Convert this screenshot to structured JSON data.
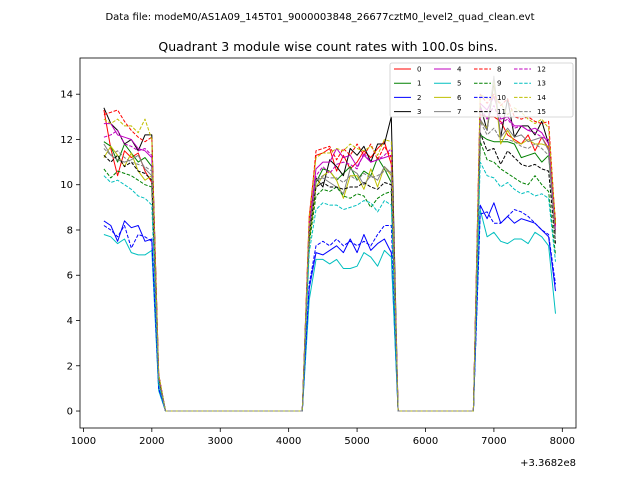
{
  "chart_data": {
    "type": "line",
    "suptitle": "Data file: modeM0/AS1A09_145T01_9000003848_26677cztM0_level2_quad_clean.evt",
    "title": "Quadrant 3 module wise count rates with 100.0s bins.",
    "xlabel": "",
    "ylabel": "",
    "x_offset_label": "+3.3682e8",
    "xlim": [
      950,
      8200
    ],
    "ylim": [
      -0.75,
      15.6
    ],
    "x_ticks": [
      1000,
      2000,
      3000,
      4000,
      5000,
      6000,
      7000,
      8000
    ],
    "y_ticks": [
      0,
      2,
      4,
      6,
      8,
      10,
      12,
      14
    ],
    "legend_position": "top-right",
    "x": [
      1300,
      1400,
      1500,
      1600,
      1700,
      1800,
      1900,
      2000,
      2100,
      2200,
      2300,
      2400,
      2500,
      2600,
      2700,
      2800,
      2900,
      3000,
      3100,
      3200,
      3300,
      3400,
      3500,
      3600,
      3700,
      3800,
      3900,
      4000,
      4100,
      4200,
      4300,
      4400,
      4500,
      4600,
      4700,
      4800,
      4900,
      5000,
      5100,
      5200,
      5300,
      5400,
      5500,
      5600,
      5700,
      5800,
      5900,
      6000,
      6100,
      6200,
      6300,
      6400,
      6500,
      6600,
      6700,
      6800,
      6900,
      7000,
      7100,
      7200,
      7300,
      7400,
      7500,
      7600,
      7700,
      7800,
      7900
    ],
    "series": [
      {
        "name": "0",
        "color": "#ff0000",
        "dash": "solid",
        "values": [
          13.3,
          11.6,
          10.4,
          11.5,
          11.2,
          11.4,
          10.6,
          10.1,
          1.4,
          0,
          0,
          0,
          0,
          0,
          0,
          0,
          0,
          0,
          0,
          0,
          0,
          0,
          0,
          0,
          0,
          0,
          0,
          0,
          0,
          0,
          8.6,
          11.3,
          11.4,
          11.6,
          10.6,
          11.3,
          10.7,
          11.0,
          11.5,
          11.2,
          11.6,
          11.9,
          10.9,
          0,
          0,
          0,
          0,
          0,
          0,
          0,
          0,
          0,
          0,
          0,
          0,
          13.1,
          13.0,
          13.0,
          12.8,
          12.2,
          12.0,
          11.8,
          12.2,
          11.5,
          12.1,
          11.6,
          8.4
        ]
      },
      {
        "name": "1",
        "color": "#008000",
        "dash": "solid",
        "values": [
          11.9,
          11.7,
          11.0,
          11.8,
          11.4,
          11.0,
          11.2,
          10.8,
          1.3,
          0,
          0,
          0,
          0,
          0,
          0,
          0,
          0,
          0,
          0,
          0,
          0,
          0,
          0,
          0,
          0,
          0,
          0,
          0,
          0,
          0,
          8.0,
          10.1,
          10.7,
          10.6,
          10.2,
          10.5,
          10.8,
          10.2,
          10.6,
          10.4,
          11.2,
          10.7,
          10.1,
          0,
          0,
          0,
          0,
          0,
          0,
          0,
          0,
          0,
          0,
          0,
          0,
          12.2,
          12.0,
          11.9,
          11.9,
          11.9,
          11.8,
          11.2,
          11.3,
          11.4,
          11.0,
          11.3,
          7.9
        ]
      },
      {
        "name": "2",
        "color": "#0000ff",
        "dash": "solid",
        "values": [
          8.4,
          8.2,
          7.5,
          8.4,
          8.1,
          8.2,
          7.5,
          7.6,
          1.0,
          0,
          0,
          0,
          0,
          0,
          0,
          0,
          0,
          0,
          0,
          0,
          0,
          0,
          0,
          0,
          0,
          0,
          0,
          0,
          0,
          0,
          5.4,
          7.0,
          6.9,
          7.1,
          7.3,
          7.0,
          7.6,
          7.0,
          7.8,
          7.1,
          7.4,
          7.6,
          7.0,
          0,
          0,
          0,
          0,
          0,
          0,
          0,
          0,
          0,
          0,
          0,
          0,
          9.1,
          8.5,
          9.2,
          8.3,
          8.6,
          8.3,
          8.5,
          8.4,
          8.3,
          8.0,
          7.7,
          5.3
        ]
      },
      {
        "name": "3",
        "color": "#000000",
        "dash": "solid",
        "values": [
          13.4,
          12.7,
          12.4,
          11.8,
          12.0,
          11.5,
          12.2,
          12.2,
          1.6,
          0,
          0,
          0,
          0,
          0,
          0,
          0,
          0,
          0,
          0,
          0,
          0,
          0,
          0,
          0,
          0,
          0,
          0,
          0,
          0,
          0,
          8.2,
          10.3,
          9.9,
          11.1,
          10.8,
          10.4,
          11.6,
          11.3,
          11.7,
          11.0,
          11.8,
          11.8,
          13.0,
          0,
          0,
          0,
          0,
          0,
          0,
          0,
          0,
          0,
          0,
          0,
          0,
          13.5,
          12.4,
          14.5,
          12.1,
          13.8,
          12.1,
          12.6,
          12.6,
          12.2,
          12.8,
          11.8,
          8.3
        ]
      },
      {
        "name": "4",
        "color": "#bf00bf",
        "dash": "solid",
        "values": [
          12.7,
          12.7,
          12.2,
          12.1,
          12.0,
          11.6,
          11.5,
          11.2,
          1.5,
          0,
          0,
          0,
          0,
          0,
          0,
          0,
          0,
          0,
          0,
          0,
          0,
          0,
          0,
          0,
          0,
          0,
          0,
          0,
          0,
          0,
          8.2,
          10.7,
          11.0,
          11.0,
          11.6,
          11.2,
          11.3,
          10.8,
          11.3,
          11.0,
          11.1,
          11.2,
          11.3,
          0,
          0,
          0,
          0,
          0,
          0,
          0,
          0,
          0,
          0,
          0,
          0,
          13.6,
          13.3,
          13.9,
          12.9,
          13.0,
          12.6,
          12.6,
          12.4,
          12.5,
          12.3,
          11.8,
          7.9
        ]
      },
      {
        "name": "5",
        "color": "#00bfbf",
        "dash": "solid",
        "values": [
          7.8,
          7.7,
          7.4,
          7.6,
          7.0,
          6.9,
          6.9,
          7.1,
          0.9,
          0,
          0,
          0,
          0,
          0,
          0,
          0,
          0,
          0,
          0,
          0,
          0,
          0,
          0,
          0,
          0,
          0,
          0,
          0,
          0,
          0,
          4.9,
          6.7,
          6.7,
          6.5,
          6.7,
          6.3,
          6.3,
          6.4,
          7.0,
          6.8,
          6.4,
          7.1,
          6.8,
          0,
          0,
          0,
          0,
          0,
          0,
          0,
          0,
          0,
          0,
          0,
          0,
          8.9,
          7.7,
          7.9,
          7.5,
          7.4,
          7.6,
          7.6,
          7.4,
          7.9,
          7.7,
          7.3,
          4.3
        ]
      },
      {
        "name": "6",
        "color": "#bfbf00",
        "dash": "solid",
        "values": [
          11.2,
          11.7,
          11.3,
          10.8,
          11.4,
          10.6,
          10.2,
          10.4,
          1.4,
          0,
          0,
          0,
          0,
          0,
          0,
          0,
          0,
          0,
          0,
          0,
          0,
          0,
          0,
          0,
          0,
          0,
          0,
          0,
          0,
          0,
          7.5,
          9.9,
          10.4,
          10.6,
          10.2,
          9.4,
          10.4,
          10.4,
          9.8,
          10.7,
          9.9,
          10.8,
          10.4,
          0,
          0,
          0,
          0,
          0,
          0,
          0,
          0,
          0,
          0,
          0,
          0,
          12.8,
          12.5,
          14.6,
          11.8,
          12.4,
          11.9,
          11.8,
          12.0,
          11.8,
          11.8,
          11.7,
          7.8
        ]
      },
      {
        "name": "7",
        "color": "#808080",
        "dash": "solid",
        "values": [
          11.8,
          11.3,
          11.1,
          11.0,
          11.1,
          11.3,
          10.7,
          10.4,
          1.4,
          0,
          0,
          0,
          0,
          0,
          0,
          0,
          0,
          0,
          0,
          0,
          0,
          0,
          0,
          0,
          0,
          0,
          0,
          0,
          0,
          0,
          7.8,
          10.2,
          10.3,
          10.1,
          9.9,
          9.6,
          10.7,
          10.5,
          10.0,
          10.4,
          10.2,
          10.8,
          10.5,
          0,
          0,
          0,
          0,
          0,
          0,
          0,
          0,
          0,
          0,
          0,
          0,
          12.9,
          12.4,
          14.8,
          12.1,
          12.5,
          12.1,
          12.2,
          11.9,
          12.0,
          12.1,
          11.5,
          7.8
        ]
      },
      {
        "name": "8",
        "color": "#ff0000",
        "dash": "dashed",
        "values": [
          13.1,
          13.2,
          13.3,
          12.8,
          12.4,
          12.1,
          11.9,
          12.1,
          1.6,
          0,
          0,
          0,
          0,
          0,
          0,
          0,
          0,
          0,
          0,
          0,
          0,
          0,
          0,
          0,
          0,
          0,
          0,
          0,
          0,
          0,
          8.4,
          11.5,
          11.6,
          11.7,
          11.1,
          11.6,
          11.3,
          11.8,
          11.3,
          11.8,
          11.1,
          11.7,
          11.2,
          0,
          0,
          0,
          0,
          0,
          0,
          0,
          0,
          0,
          0,
          0,
          0,
          14.0,
          13.6,
          14.0,
          13.5,
          13.8,
          13.0,
          12.9,
          13.0,
          12.8,
          12.7,
          12.8,
          8.2
        ]
      },
      {
        "name": "9",
        "color": "#008000",
        "dash": "dashed",
        "values": [
          10.7,
          10.3,
          10.6,
          10.5,
          10.4,
          10.2,
          10.0,
          9.9,
          1.3,
          0,
          0,
          0,
          0,
          0,
          0,
          0,
          0,
          0,
          0,
          0,
          0,
          0,
          0,
          0,
          0,
          0,
          0,
          0,
          0,
          0,
          7.4,
          9.5,
          9.8,
          9.7,
          9.9,
          9.5,
          9.4,
          9.6,
          9.5,
          9.0,
          9.4,
          9.6,
          9.7,
          0,
          0,
          0,
          0,
          0,
          0,
          0,
          0,
          0,
          0,
          0,
          0,
          11.9,
          11.1,
          11.0,
          10.7,
          10.5,
          10.3,
          10.1,
          10.0,
          10.4,
          10.0,
          9.7,
          6.9
        ]
      },
      {
        "name": "10",
        "color": "#0000ff",
        "dash": "dashed",
        "values": [
          8.2,
          8.0,
          7.7,
          8.2,
          7.2,
          7.8,
          7.7,
          7.5,
          1.0,
          0,
          0,
          0,
          0,
          0,
          0,
          0,
          0,
          0,
          0,
          0,
          0,
          0,
          0,
          0,
          0,
          0,
          0,
          0,
          0,
          0,
          5.6,
          7.3,
          7.5,
          7.3,
          7.6,
          7.3,
          7.5,
          7.3,
          7.5,
          7.3,
          7.8,
          8.2,
          8.2,
          0,
          0,
          0,
          0,
          0,
          0,
          0,
          0,
          0,
          0,
          0,
          0,
          8.7,
          8.8,
          8.3,
          8.3,
          8.6,
          8.9,
          8.8,
          8.6,
          8.3,
          8.0,
          7.8,
          5.6
        ]
      },
      {
        "name": "11",
        "color": "#000000",
        "dash": "dashed",
        "values": [
          11.3,
          11.0,
          11.3,
          10.8,
          11.0,
          10.6,
          10.5,
          10.2,
          1.4,
          0,
          0,
          0,
          0,
          0,
          0,
          0,
          0,
          0,
          0,
          0,
          0,
          0,
          0,
          0,
          0,
          0,
          0,
          0,
          0,
          0,
          7.8,
          9.9,
          10.1,
          9.9,
          9.9,
          9.8,
          9.9,
          9.9,
          10.1,
          9.9,
          9.8,
          10.1,
          10.0,
          0,
          0,
          0,
          0,
          0,
          0,
          0,
          0,
          0,
          0,
          0,
          0,
          12.3,
          11.5,
          11.6,
          10.9,
          11.5,
          11.2,
          10.9,
          10.8,
          10.9,
          10.7,
          10.6,
          7.4
        ]
      },
      {
        "name": "12",
        "color": "#bf00bf",
        "dash": "dashed",
        "values": [
          12.1,
          12.2,
          12.4,
          11.8,
          11.7,
          11.5,
          11.6,
          11.3,
          1.5,
          0,
          0,
          0,
          0,
          0,
          0,
          0,
          0,
          0,
          0,
          0,
          0,
          0,
          0,
          0,
          0,
          0,
          0,
          0,
          0,
          0,
          8.2,
          10.4,
          10.8,
          10.5,
          10.9,
          11.0,
          10.9,
          10.7,
          11.4,
          11.0,
          11.1,
          11.3,
          11.6,
          0,
          0,
          0,
          0,
          0,
          0,
          0,
          0,
          0,
          0,
          0,
          0,
          13.4,
          12.9,
          13.5,
          12.7,
          12.9,
          12.5,
          12.6,
          12.4,
          12.3,
          12.1,
          12.0,
          8.0
        ]
      },
      {
        "name": "13",
        "color": "#00bfbf",
        "dash": "dashed",
        "values": [
          10.4,
          10.1,
          10.2,
          10.0,
          9.8,
          9.5,
          9.4,
          9.1,
          1.2,
          0,
          0,
          0,
          0,
          0,
          0,
          0,
          0,
          0,
          0,
          0,
          0,
          0,
          0,
          0,
          0,
          0,
          0,
          0,
          0,
          0,
          7.0,
          8.9,
          9.2,
          9.1,
          9.1,
          8.9,
          9.0,
          9.1,
          9.3,
          9.2,
          8.8,
          9.3,
          9.1,
          0,
          0,
          0,
          0,
          0,
          0,
          0,
          0,
          0,
          0,
          0,
          0,
          11.0,
          10.4,
          10.3,
          9.9,
          10.1,
          9.8,
          9.6,
          9.7,
          9.5,
          9.6,
          9.4,
          6.6
        ]
      },
      {
        "name": "14",
        "color": "#bfbf00",
        "dash": "dashed",
        "values": [
          12.9,
          12.7,
          12.9,
          12.6,
          12.6,
          12.3,
          12.9,
          12.0,
          1.6,
          0,
          0,
          0,
          0,
          0,
          0,
          0,
          0,
          0,
          0,
          0,
          0,
          0,
          0,
          0,
          0,
          0,
          0,
          0,
          0,
          0,
          8.5,
          11.2,
          11.4,
          11.4,
          11.6,
          11.5,
          11.8,
          11.6,
          11.5,
          11.7,
          11.3,
          12.0,
          11.9,
          0,
          0,
          0,
          0,
          0,
          0,
          0,
          0,
          0,
          0,
          0,
          0,
          14.0,
          13.8,
          13.9,
          13.6,
          13.1,
          13.4,
          13.2,
          12.9,
          12.7,
          12.9,
          12.5,
          8.3
        ]
      },
      {
        "name": "15",
        "color": "#808080",
        "dash": "dashed",
        "values": [
          11.6,
          11.3,
          11.5,
          11.2,
          11.0,
          10.9,
          10.8,
          10.6,
          1.4,
          0,
          0,
          0,
          0,
          0,
          0,
          0,
          0,
          0,
          0,
          0,
          0,
          0,
          0,
          0,
          0,
          0,
          0,
          0,
          0,
          0,
          7.9,
          10.2,
          10.4,
          10.3,
          10.3,
          10.1,
          10.4,
          10.2,
          10.5,
          10.3,
          10.4,
          10.6,
          10.6,
          0,
          0,
          0,
          0,
          0,
          0,
          0,
          0,
          0,
          0,
          0,
          0,
          12.8,
          12.2,
          12.5,
          12.0,
          12.0,
          11.9,
          11.7,
          11.6,
          11.8,
          11.6,
          11.3,
          7.6
        ]
      }
    ]
  }
}
